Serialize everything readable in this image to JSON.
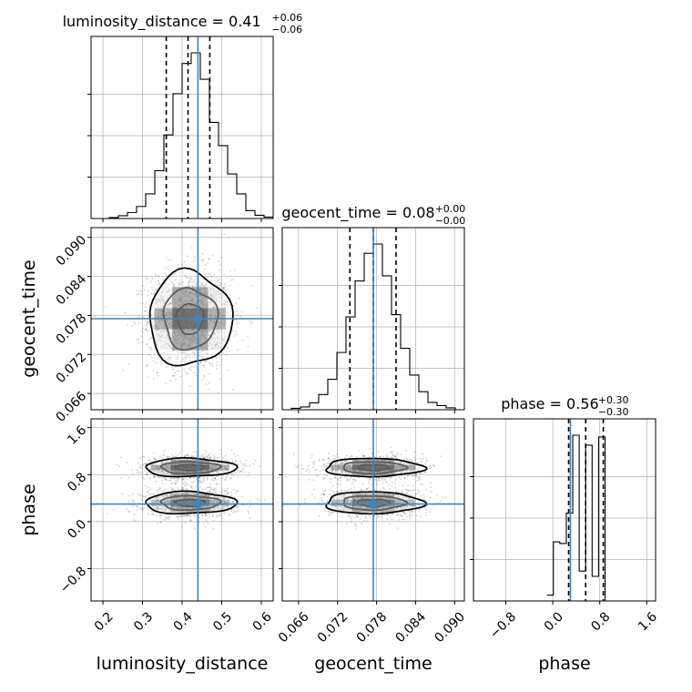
{
  "chart_data": {
    "type": "corner",
    "colors": {
      "truth": "#4682b4",
      "hist": "#000000",
      "grid": "#b0b0b0",
      "frame": "#000000"
    },
    "grid": true,
    "truths": {
      "luminosity_distance": 0.44,
      "geocent_time": 0.0775,
      "phase": 0.3
    },
    "parameters": [
      {
        "name": "luminosity_distance",
        "title": {
          "prefix": "luminosity_distance = 0.41",
          "sup": "+0.06",
          "sub": "−0.06"
        },
        "range": [
          0.17,
          0.63
        ],
        "ticks": [
          0.2,
          0.3,
          0.4,
          0.5,
          0.6
        ],
        "tick_labels": [
          "0.2",
          "0.3",
          "0.4",
          "0.5",
          "0.6"
        ],
        "quantiles": [
          0.36,
          0.415,
          0.47
        ],
        "hist": {
          "edges": [
            0.17,
            0.193,
            0.216,
            0.239,
            0.262,
            0.285,
            0.308,
            0.331,
            0.354,
            0.377,
            0.4,
            0.423,
            0.446,
            0.469,
            0.492,
            0.515,
            0.538,
            0.561,
            0.584,
            0.607,
            0.63
          ],
          "counts": [
            0,
            0,
            2,
            6,
            13,
            26,
            53,
            103,
            180,
            269,
            334,
            357,
            300,
            207,
            157,
            96,
            53,
            17,
            7,
            3
          ]
        }
      },
      {
        "name": "geocent_time",
        "title": {
          "prefix": "geocent_time = 0.08",
          "sup": "+0.00",
          "sub": "−0.00"
        },
        "range": [
          0.0635,
          0.0915
        ],
        "ticks": [
          0.066,
          0.072,
          0.078,
          0.084,
          0.09
        ],
        "tick_labels": [
          "0.066",
          "0.072",
          "0.078",
          "0.084",
          "0.090"
        ],
        "quantiles": [
          0.0739,
          0.0775,
          0.081
        ],
        "hist": {
          "edges": [
            0.0635,
            0.0649,
            0.0663,
            0.0677,
            0.0691,
            0.0705,
            0.0719,
            0.0733,
            0.0747,
            0.0761,
            0.0775,
            0.0789,
            0.0803,
            0.0817,
            0.0831,
            0.0845,
            0.0859,
            0.0873,
            0.0887,
            0.0901,
            0.0915
          ],
          "counts": [
            0,
            3,
            6,
            15,
            33,
            66,
            124,
            201,
            279,
            339,
            359,
            290,
            206,
            133,
            75,
            39,
            16,
            9,
            4,
            0
          ]
        }
      },
      {
        "name": "phase",
        "title": {
          "prefix": "phase = 0.56",
          "sup": "+0.30",
          "sub": "−0.30"
        },
        "range": [
          -1.35,
          1.75
        ],
        "ticks": [
          -0.8,
          0.0,
          0.8,
          1.6
        ],
        "tick_labels": [
          "−0.8",
          "0.0",
          "0.8",
          "1.6"
        ],
        "quantiles": [
          0.27,
          0.56,
          0.86
        ],
        "hist": {
          "edges": [
            -0.1,
            0.01,
            0.12,
            0.23,
            0.34,
            0.45,
            0.56,
            0.67,
            0.78,
            0.89,
            1.0
          ],
          "counts": [
            10,
            101,
            98,
            150,
            283,
            51,
            266,
            42,
            280,
            0
          ]
        }
      }
    ],
    "contours": [
      {
        "x": "luminosity_distance",
        "y": "geocent_time",
        "modes": [
          {
            "mx": 0.42,
            "my": 0.0775,
            "sx": 0.05,
            "sy": 0.0036,
            "w": 1
          }
        ]
      },
      {
        "x": "luminosity_distance",
        "y": "phase",
        "modes": [
          {
            "mx": 0.42,
            "my": 0.92,
            "sx": 0.055,
            "sy": 0.1,
            "w": 1
          },
          {
            "mx": 0.42,
            "my": 0.32,
            "sx": 0.055,
            "sy": 0.12,
            "w": 0.85
          }
        ]
      },
      {
        "x": "geocent_time",
        "y": "phase",
        "modes": [
          {
            "mx": 0.0775,
            "my": 0.92,
            "sx": 0.0036,
            "sy": 0.1,
            "w": 1
          },
          {
            "mx": 0.0775,
            "my": 0.32,
            "sx": 0.0036,
            "sy": 0.12,
            "w": 0.85
          }
        ]
      }
    ]
  }
}
